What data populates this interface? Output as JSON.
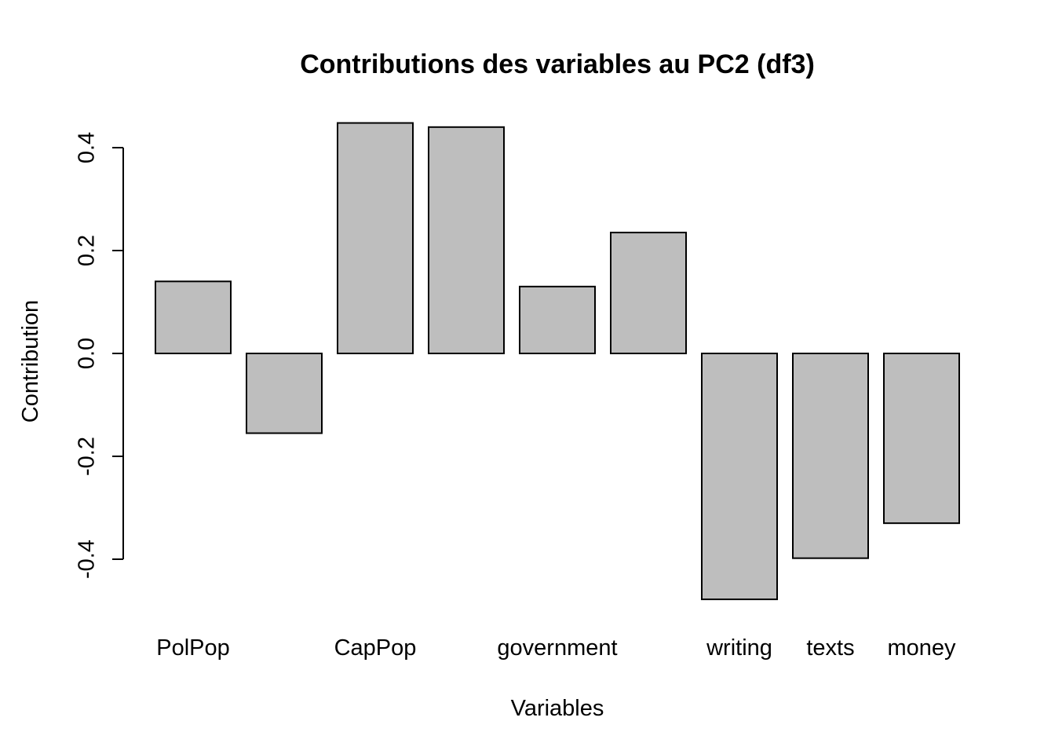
{
  "chart_data": {
    "type": "bar",
    "title": "Contributions des variables au PC2 (df3)",
    "xlabel": "Variables",
    "ylabel": "Contribution",
    "categories": [
      "PolPop",
      "",
      "CapPop",
      "",
      "government",
      "",
      "writing",
      "texts",
      "money"
    ],
    "values": [
      0.14,
      -0.155,
      0.448,
      0.44,
      0.13,
      0.235,
      -0.478,
      -0.398,
      -0.33
    ],
    "yticks": [
      -0.4,
      -0.2,
      0.0,
      0.2,
      0.4
    ],
    "ytick_labels": [
      "-0.4",
      "-0.2",
      "0.0",
      "0.2",
      "0.4"
    ],
    "ylim": [
      -0.478,
      0.448
    ],
    "grid": false,
    "legend": "none",
    "bar_color": "#bebebe",
    "border_color": "#000000"
  }
}
